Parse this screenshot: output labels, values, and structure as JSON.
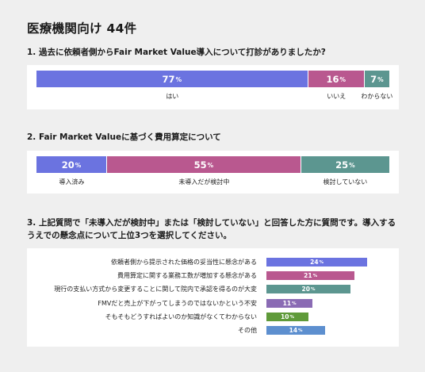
{
  "page_title": "医療機関向け 44件",
  "chart_data": [
    {
      "type": "bar",
      "orientation": "horizontal-stacked",
      "title": "1. 過去に依頼者側からFair Market Value導入について打診がありましたか?",
      "categories": [
        "はい",
        "いいえ",
        "わからない"
      ],
      "values": [
        77,
        16,
        7
      ],
      "value_suffix": "%",
      "colors": [
        "#6b73e0",
        "#b9588f",
        "#5c9690"
      ]
    },
    {
      "type": "bar",
      "orientation": "horizontal-stacked",
      "title": "2. Fair Market Valueに基づく費用算定について",
      "categories": [
        "導入済み",
        "未導入だが検討中",
        "検討していない"
      ],
      "values": [
        20,
        55,
        25
      ],
      "value_suffix": "%",
      "colors": [
        "#6b73e0",
        "#b9588f",
        "#5c9690"
      ]
    },
    {
      "type": "bar",
      "orientation": "horizontal",
      "title": "3. 上記質問で「未導入だが検討中」または「検討していない」と回答した方に質問です。導入するうえでの懸念点について上位3つを選択してください。",
      "categories": [
        "依頼者側から提示された価格の妥当性に懸念がある",
        "費用算定に関する業務工数が増加する懸念がある",
        "現行の支払い方式から変更することに関して院内で承認を得るのが大変",
        "FMVだと売上が下がってしまうのではないかという不安",
        "そもそもどうすればよいのか知識がなくてわからない",
        "その他"
      ],
      "values": [
        24,
        21,
        20,
        11,
        10,
        14
      ],
      "value_suffix": "%",
      "colors": [
        "#6b73e0",
        "#b9588f",
        "#5c9690",
        "#8a6bb4",
        "#5f9a3a",
        "#5d8fcf"
      ]
    }
  ]
}
